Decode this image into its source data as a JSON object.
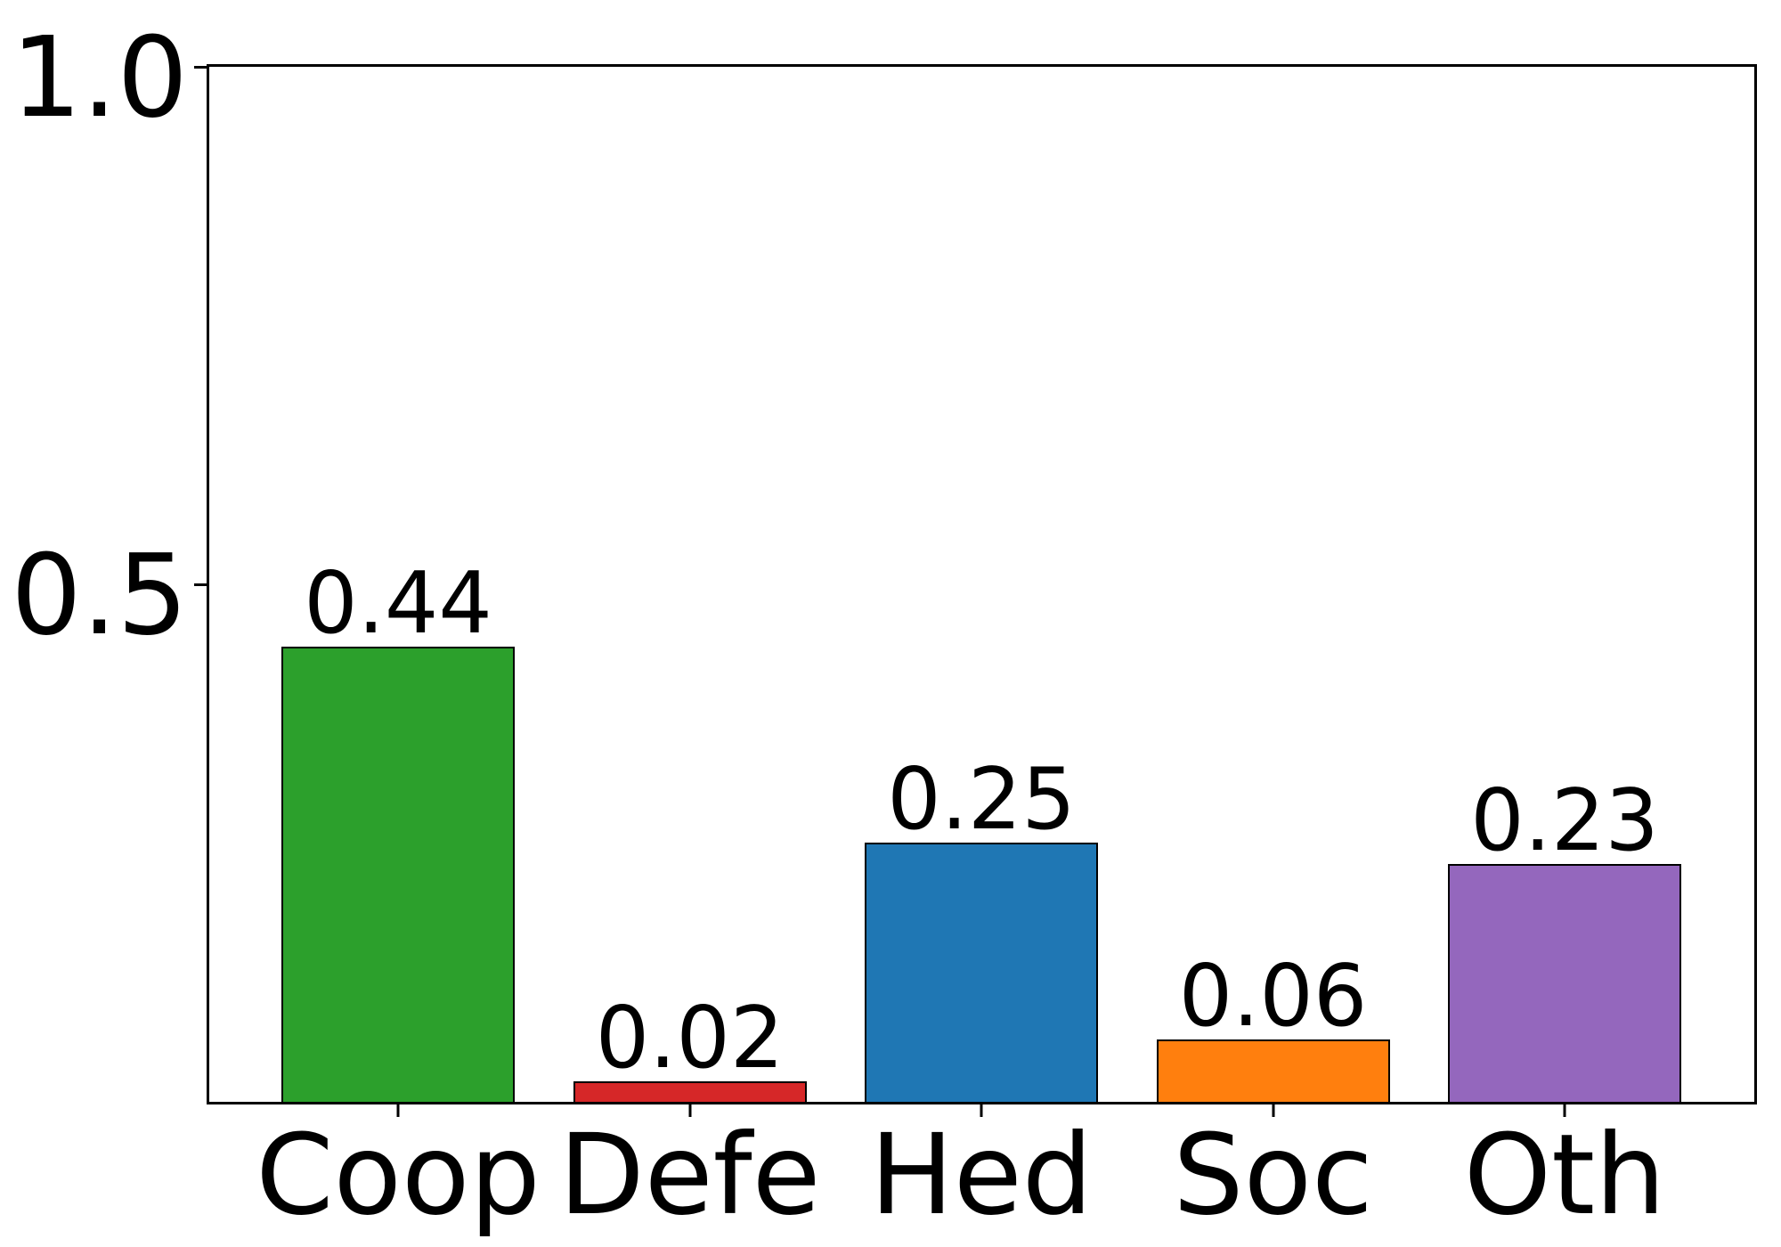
{
  "chart_data": {
    "type": "bar",
    "title": "",
    "xlabel": "",
    "ylabel": "",
    "categories": [
      "Coop",
      "Defe",
      "Hed",
      "Soc",
      "Oth"
    ],
    "values": [
      0.44,
      0.02,
      0.25,
      0.06,
      0.23
    ],
    "value_labels": [
      "0.44",
      "0.02",
      "0.25",
      "0.06",
      "0.23"
    ],
    "bar_colors": [
      "#2ca02c",
      "#d62728",
      "#1f77b4",
      "#ff7f0e",
      "#9467bd"
    ],
    "bar_edge_color": "#000000",
    "ylim": [
      0.0,
      1.0
    ],
    "yticks": [
      {
        "value": 0.5,
        "label": "0.5"
      },
      {
        "value": 1.0,
        "label": "1.0"
      }
    ],
    "grid": false,
    "legend": null,
    "background_color": "#ffffff",
    "text_color": "#000000"
  }
}
